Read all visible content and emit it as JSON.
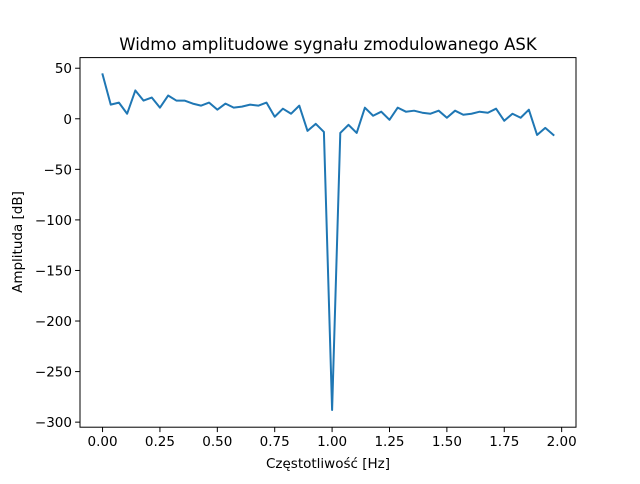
{
  "chart_data": {
    "type": "line",
    "title": "Widmo amplitudowe sygnału zmodulowanego ASK",
    "xlabel": "Częstotliwość [Hz]",
    "ylabel": "Amplituda [dB]",
    "x": [
      0,
      0.0357,
      0.0714,
      0.1071,
      0.1429,
      0.1786,
      0.2143,
      0.25,
      0.2857,
      0.3214,
      0.3571,
      0.3929,
      0.4286,
      0.4643,
      0.5,
      0.5357,
      0.5714,
      0.6071,
      0.6429,
      0.6786,
      0.7143,
      0.75,
      0.7857,
      0.8214,
      0.8571,
      0.8929,
      0.9286,
      0.9643,
      1.0,
      1.0357,
      1.0714,
      1.1071,
      1.1429,
      1.1786,
      1.2143,
      1.25,
      1.2857,
      1.3214,
      1.3571,
      1.3929,
      1.4286,
      1.4643,
      1.5,
      1.5357,
      1.5714,
      1.6071,
      1.6429,
      1.6786,
      1.7143,
      1.75,
      1.7857,
      1.8214,
      1.8571,
      1.8929,
      1.9286,
      1.9643
    ],
    "series": [
      {
        "name": "widmo",
        "color": "#1f77b4",
        "values": [
          44,
          14,
          16,
          5,
          28,
          18,
          21,
          11,
          23,
          18,
          18,
          15,
          13,
          16,
          9,
          15,
          11,
          12,
          14,
          13,
          16,
          2,
          10,
          5,
          13,
          -12,
          -5,
          -13,
          -288,
          -14,
          -6,
          -14,
          11,
          3,
          7,
          -1,
          11,
          7,
          8,
          6,
          5,
          8,
          1,
          8,
          4,
          5,
          7,
          6,
          10,
          -2,
          5,
          1,
          9,
          -16,
          -9,
          -16
        ]
      }
    ],
    "xlim": [
      -0.0982,
      2.0625
    ],
    "ylim": [
      -305,
      60.5
    ],
    "xticks": [
      {
        "value": 0,
        "label": "0.00"
      },
      {
        "value": 0.25,
        "label": "0.25"
      },
      {
        "value": 0.5,
        "label": "0.50"
      },
      {
        "value": 0.75,
        "label": "0.75"
      },
      {
        "value": 1,
        "label": "1.00"
      },
      {
        "value": 1.25,
        "label": "1.25"
      },
      {
        "value": 1.5,
        "label": "1.50"
      },
      {
        "value": 1.75,
        "label": "1.75"
      },
      {
        "value": 2,
        "label": "2.00"
      }
    ],
    "yticks": [
      50,
      0,
      {
        "value": -50,
        "label": "−50"
      },
      {
        "value": -100,
        "label": "−100"
      },
      {
        "value": -150,
        "label": "−150"
      },
      {
        "value": -200,
        "label": "−200"
      },
      {
        "value": -250,
        "label": "−250"
      },
      {
        "value": -300,
        "label": "−300"
      }
    ],
    "grid": false
  }
}
